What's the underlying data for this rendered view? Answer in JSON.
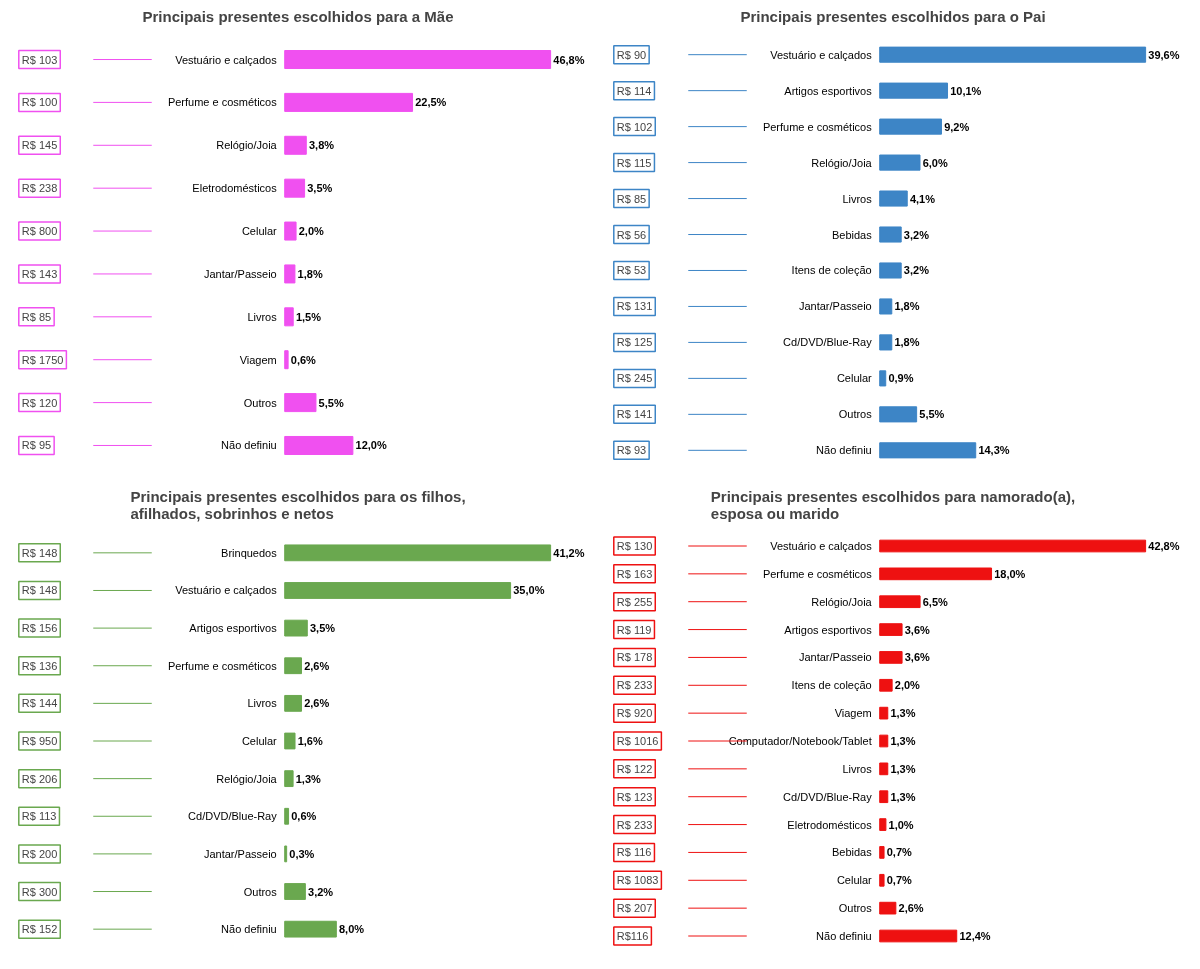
{
  "chart_data": [
    {
      "type": "bar",
      "orientation": "horizontal",
      "title": "Principais presentes escolhidos para a Mãe",
      "color": "#f050f0",
      "categories": [
        "Vestuário e calçados",
        "Perfume e cosméticos",
        "Relógio/Joia",
        "Eletrodomésticos",
        "Celular",
        "Jantar/Passeio",
        "Livros",
        "Viagem",
        "Outros",
        "Não definiu"
      ],
      "values": [
        46.8,
        22.5,
        3.8,
        3.5,
        2.0,
        1.8,
        1.5,
        0.6,
        5.5,
        12.0
      ],
      "value_labels": [
        "46,8%",
        "22,5%",
        "3,8%",
        "3,5%",
        "2,0%",
        "1,8%",
        "1,5%",
        "0,6%",
        "5,5%",
        "12,0%"
      ],
      "annotations": [
        "R$ 103",
        "R$ 100",
        "R$ 145",
        "R$ 238",
        "R$ 800",
        "R$ 143",
        "R$ 85",
        "R$ 1750",
        "R$ 120",
        "R$ 95"
      ]
    },
    {
      "type": "bar",
      "orientation": "horizontal",
      "title": "Principais presentes escolhidos para o Pai",
      "color": "#3d85c6",
      "categories": [
        "Vestuário e calçados",
        "Artigos esportivos",
        "Perfume e cosméticos",
        "Relógio/Joia",
        "Livros",
        "Bebidas",
        "Itens de coleção",
        "Jantar/Passeio",
        "Cd/DVD/Blue-Ray",
        "Celular",
        "Outros",
        "Não definiu"
      ],
      "values": [
        39.6,
        10.1,
        9.2,
        6.0,
        4.1,
        3.2,
        3.2,
        1.8,
        1.8,
        0.9,
        5.5,
        14.3
      ],
      "value_labels": [
        "39,6%",
        "10,1%",
        "9,2%",
        "6,0%",
        "4,1%",
        "3,2%",
        "3,2%",
        "1,8%",
        "1,8%",
        "0,9%",
        "5,5%",
        "14,3%"
      ],
      "annotations": [
        "R$ 90",
        "R$ 114",
        "R$ 102",
        "R$ 115",
        "R$ 85",
        "R$ 56",
        "R$ 53",
        "R$ 131",
        "R$ 125",
        "R$ 245",
        "R$ 141",
        "R$ 93"
      ]
    },
    {
      "type": "bar",
      "orientation": "horizontal",
      "title": "Principais presentes escolhidos para os filhos, afilhados, sobrinhos e netos",
      "color": "#6aa84f",
      "categories": [
        "Brinquedos",
        "Vestuário e calçados",
        "Artigos esportivos",
        "Perfume e cosméticos",
        "Livros",
        "Celular",
        "Relógio/Joia",
        "Cd/DVD/Blue-Ray",
        "Jantar/Passeio",
        "Outros",
        "Não definiu"
      ],
      "values": [
        41.2,
        35.0,
        3.5,
        2.6,
        2.6,
        1.6,
        1.3,
        0.6,
        0.3,
        3.2,
        8.0
      ],
      "value_labels": [
        "41,2%",
        "35,0%",
        "3,5%",
        "2,6%",
        "2,6%",
        "1,6%",
        "1,3%",
        "0,6%",
        "0,3%",
        "3,2%",
        "8,0%"
      ],
      "annotations": [
        "R$ 148",
        "R$ 148",
        "R$ 156",
        "R$ 136",
        "R$ 144",
        "R$ 950",
        "R$ 206",
        "R$ 113",
        "R$ 200",
        "R$ 300",
        "R$ 152"
      ]
    },
    {
      "type": "bar",
      "orientation": "horizontal",
      "title": "Principais presentes escolhidos para namorado(a), esposa ou marido",
      "color": "#ee1111",
      "categories": [
        "Vestuário e calçados",
        "Perfume e cosméticos",
        "Relógio/Joia",
        "Artigos esportivos",
        "Jantar/Passeio",
        "Itens de coleção",
        "Viagem",
        "Computador/Notebook/Tablet",
        "Livros",
        "Cd/DVD/Blue-Ray",
        "Eletrodomésticos",
        "Bebidas",
        "Celular",
        "Outros",
        "Não definiu"
      ],
      "values": [
        42.8,
        18.0,
        6.5,
        3.6,
        3.6,
        2.0,
        1.3,
        1.3,
        1.3,
        1.3,
        1.0,
        0.7,
        0.7,
        2.6,
        12.4
      ],
      "value_labels": [
        "42,8%",
        "18,0%",
        "6,5%",
        "3,6%",
        "3,6%",
        "2,0%",
        "1,3%",
        "1,3%",
        "1,3%",
        "1,3%",
        "1,0%",
        "0,7%",
        "0,7%",
        "2,6%",
        "12,4%"
      ],
      "annotations": [
        "R$ 130",
        "R$ 163",
        "R$ 255",
        "R$ 119",
        "R$ 178",
        "R$ 233",
        "R$ 920",
        "R$ 1016",
        "R$ 122",
        "R$ 123",
        "R$ 233",
        "R$ 116",
        "R$ 1083",
        "R$ 207",
        "R$116"
      ]
    }
  ]
}
